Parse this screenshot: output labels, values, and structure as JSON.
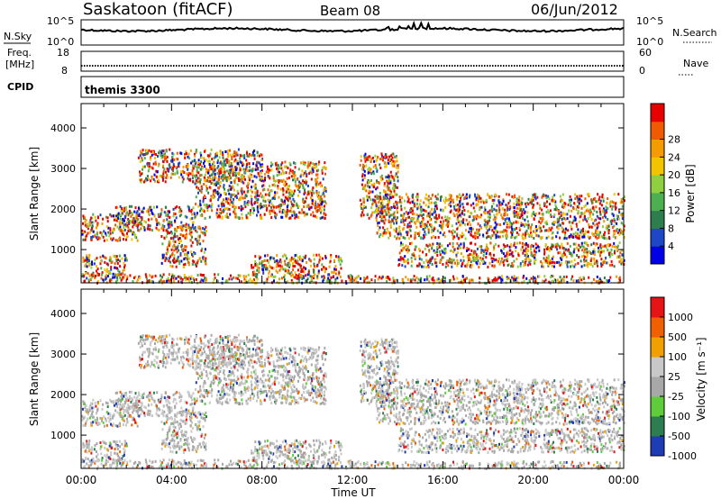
{
  "header": {
    "station": "Saskatoon (fitACF)",
    "beam": "Beam 08",
    "date": "06/Jun/2012"
  },
  "strips": {
    "nsky_label": "N.Sky",
    "nsky_ticks": [
      "10^5",
      "10^0"
    ],
    "nsearch_label": "N.Search",
    "nsearch_ticks": [
      "10^5",
      "10^0"
    ],
    "freq_label_1": "Freq.",
    "freq_label_2": "[MHz]",
    "freq_ticks": [
      "18",
      "8"
    ],
    "nave_label": "Nave",
    "nave_ticks": [
      "60",
      "0"
    ],
    "cpid_label": "CPID",
    "cpid_value": "themis 3300"
  },
  "chart_data": [
    {
      "type": "heatmap",
      "name": "power",
      "ylabel": "Slant Range [km]",
      "yticks": [
        1000,
        2000,
        3000,
        4000
      ],
      "ylim": [
        180,
        4600
      ],
      "xlim": [
        0,
        24
      ],
      "xticks": [
        "00:00",
        "04:00",
        "08:00",
        "12:00",
        "16:00",
        "20:00",
        "00:00"
      ],
      "colorbar": {
        "label": "Power [dB]",
        "ticks": [
          "4",
          "8",
          "12",
          "16",
          "20",
          "24",
          "28"
        ],
        "colors": [
          "#0000e6",
          "#1e46c8",
          "#2e7d4f",
          "#4caf50",
          "#8fd040",
          "#f2c400",
          "#f49b00",
          "#f05a00",
          "#e60000"
        ]
      }
    },
    {
      "type": "heatmap",
      "name": "velocity",
      "ylabel": "Slant Range [km]",
      "yticks": [
        1000,
        2000,
        3000,
        4000
      ],
      "ylim": [
        180,
        4600
      ],
      "xlim": [
        0,
        24
      ],
      "xticks": [
        "00:00",
        "04:00",
        "08:00",
        "12:00",
        "16:00",
        "20:00",
        "00:00"
      ],
      "xlabel": "Time UT",
      "colorbar": {
        "label": "Velocity [m s⁻¹]",
        "ticks": [
          "1000",
          "500",
          "100",
          "25",
          "-25",
          "-100",
          "-500",
          "-1000"
        ],
        "colors": [
          "#1e3cb4",
          "#2d7d50",
          "#5fcc3c",
          "#a8a8a8",
          "#c8c8c8",
          "#f0a000",
          "#f06000",
          "#e61414"
        ]
      }
    }
  ],
  "colors": {
    "gray_scatter": "#c2c2bc",
    "frame": "#000000"
  }
}
